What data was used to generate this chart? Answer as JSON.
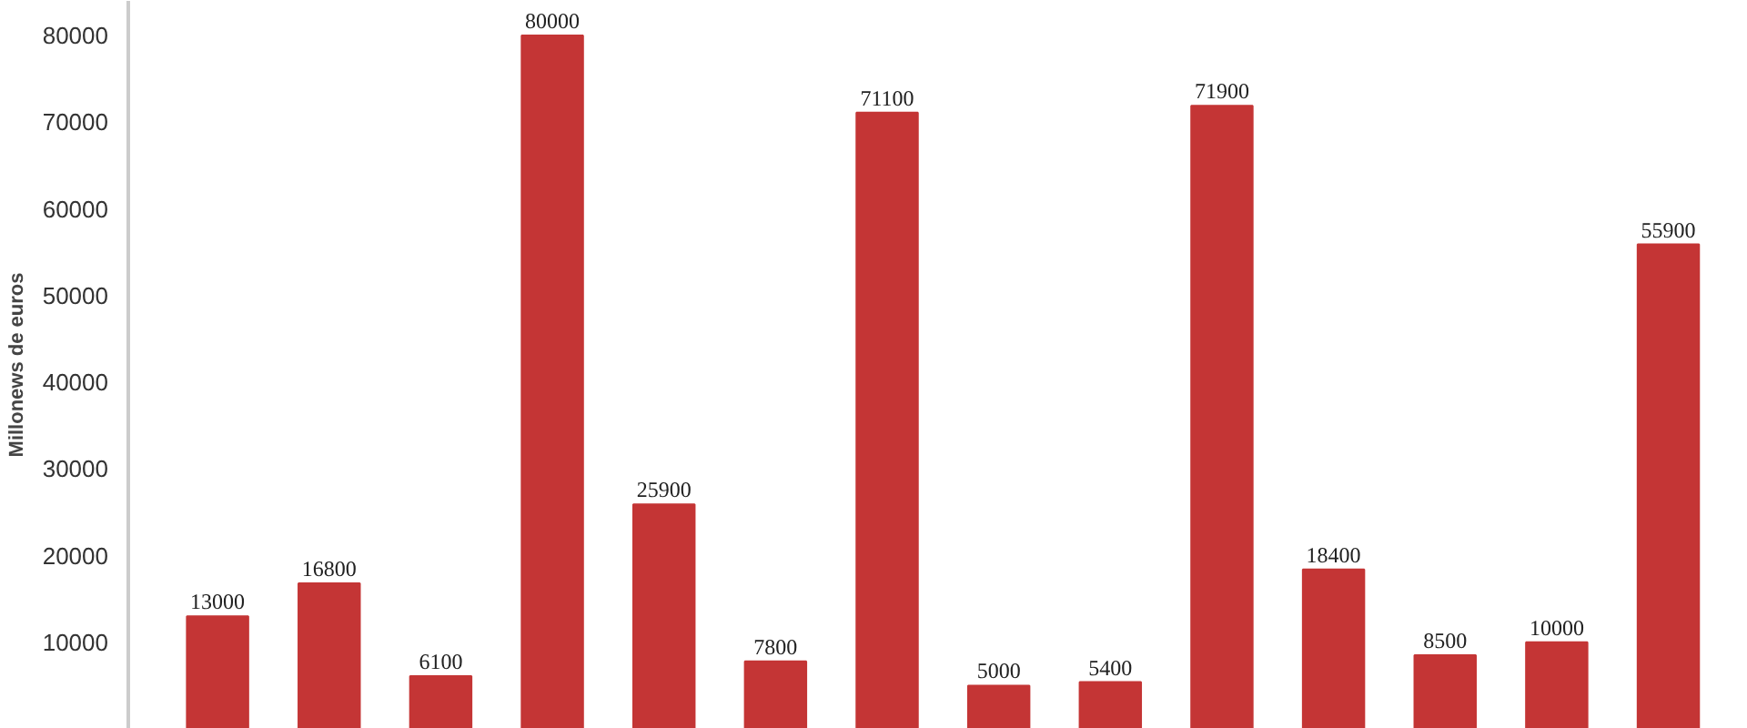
{
  "chart_data": {
    "type": "bar",
    "ylabel": "Millonews de euros",
    "categories": [
      null,
      null,
      null,
      null,
      null,
      null,
      null,
      null,
      null,
      null,
      null,
      null,
      null,
      null
    ],
    "values": [
      13000,
      16800,
      6100,
      80000,
      25900,
      7800,
      71100,
      5000,
      5400,
      71900,
      18400,
      8500,
      10000,
      55900
    ],
    "color": "#c43535",
    "data_labels": true,
    "grid": false,
    "ylim": [
      0,
      84000
    ],
    "yticks": [
      10000,
      20000,
      30000,
      40000,
      50000,
      60000,
      70000,
      80000
    ]
  }
}
